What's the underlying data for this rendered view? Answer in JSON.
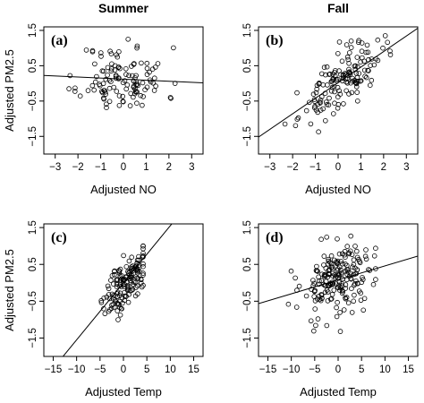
{
  "column_titles": [
    "Summer",
    "Fall"
  ],
  "chart_data": [
    {
      "type": "scatter",
      "panel_label": "(a)",
      "xlabel": "Adjusted NO",
      "ylabel": "Adjusted PM2.5",
      "xlim": [
        -3.5,
        3.5
      ],
      "ylim": [
        -2,
        1.6
      ],
      "xticks": [
        -3,
        -2,
        -1,
        0,
        1,
        2,
        3
      ],
      "yticks": [
        -1.5,
        -0.5,
        0.5,
        1.5
      ],
      "fit_line": {
        "intercept": 0.12,
        "slope": -0.03
      },
      "seed": 11,
      "n_points": 120,
      "x_spread": 0.95,
      "y_spread": 0.48,
      "trend": -0.03,
      "x_center": 0,
      "clip": [
        -3.2,
        2.5,
        -1.6,
        1.25
      ]
    },
    {
      "type": "scatter",
      "panel_label": "(b)",
      "xlabel": "Adjusted NO",
      "ylabel": "",
      "xlim": [
        -3.5,
        3.5
      ],
      "ylim": [
        -2,
        1.6
      ],
      "xticks": [
        -3,
        -2,
        -1,
        0,
        1,
        2,
        3
      ],
      "yticks": [
        -1.5,
        -0.5,
        0.5,
        1.5
      ],
      "fit_line": {
        "intercept": 0.02,
        "slope": 0.44
      },
      "seed": 23,
      "n_points": 150,
      "x_spread": 0.9,
      "y_spread": 0.38,
      "trend": 0.44,
      "x_center": 0.1,
      "clip": [
        -2.9,
        2.3,
        -1.75,
        1.35
      ]
    },
    {
      "type": "scatter",
      "panel_label": "(c)",
      "xlabel": "Adjusted Temp",
      "ylabel": "Adjusted PM2.5",
      "xlim": [
        -17,
        17
      ],
      "ylim": [
        -2,
        1.6
      ],
      "xticks": [
        -15,
        -10,
        -5,
        0,
        5,
        10,
        15
      ],
      "yticks": [
        -1.5,
        -0.5,
        0.5,
        1.5
      ],
      "fit_line": {
        "intercept": 0.0,
        "slope": 0.155
      },
      "seed": 37,
      "n_points": 150,
      "x_spread": 2.2,
      "y_spread": 0.33,
      "trend": 0.13,
      "x_center": 0.5,
      "clip": [
        -8,
        4.2,
        -1.55,
        1.0
      ]
    },
    {
      "type": "scatter",
      "panel_label": "(d)",
      "xlabel": "Adjusted Temp",
      "ylabel": "",
      "xlim": [
        -17,
        17
      ],
      "ylim": [
        -2,
        1.6
      ],
      "xticks": [
        -15,
        -10,
        -5,
        0,
        5,
        10,
        15
      ],
      "yticks": [
        -1.5,
        -0.5,
        0.5,
        1.5
      ],
      "fit_line": {
        "intercept": 0.08,
        "slope": 0.038
      },
      "seed": 53,
      "n_points": 200,
      "x_spread": 4.0,
      "y_spread": 0.5,
      "trend": 0.038,
      "x_center": 0,
      "clip": [
        -14.5,
        8,
        -1.75,
        1.3
      ]
    }
  ]
}
